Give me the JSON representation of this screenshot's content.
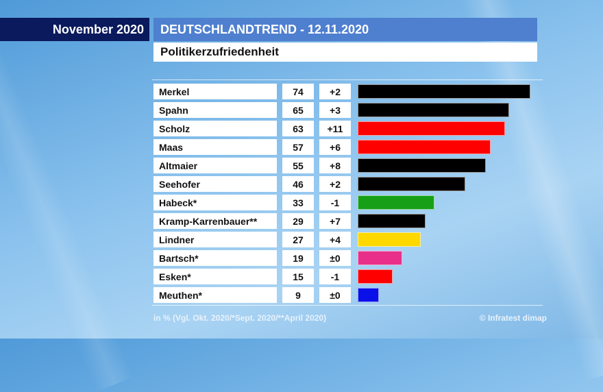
{
  "header": {
    "date_badge": "November 2020",
    "title": "DEUTSCHLANDTREND - 12.11.2020",
    "subtitle": "Politikerzufriedenheit"
  },
  "chart_data": {
    "type": "bar",
    "title": "Politikerzufriedenheit",
    "unit": "in %",
    "categories": [
      "Merkel",
      "Spahn",
      "Scholz",
      "Maas",
      "Altmaier",
      "Seehofer",
      "Habeck*",
      "Kramp-Karrenbauer**",
      "Lindner",
      "Bartsch*",
      "Esken*",
      "Meuthen*"
    ],
    "values": [
      74,
      65,
      63,
      57,
      55,
      46,
      33,
      29,
      27,
      19,
      15,
      9
    ],
    "changes": [
      "+2",
      "+3",
      "+11",
      "+6",
      "+8",
      "+2",
      "-1",
      "+7",
      "+4",
      "±0",
      "-1",
      "±0"
    ],
    "colors": [
      "#000000",
      "#000000",
      "#ff0000",
      "#ff0000",
      "#000000",
      "#000000",
      "#17a017",
      "#000000",
      "#ffd800",
      "#e8308a",
      "#ff0000",
      "#0a10e8"
    ],
    "xlim": [
      0,
      74
    ]
  },
  "footer": {
    "note": "in % (Vgl. Okt. 2020/*Sept. 2020/**April 2020)",
    "source": "© Infratest dimap"
  }
}
